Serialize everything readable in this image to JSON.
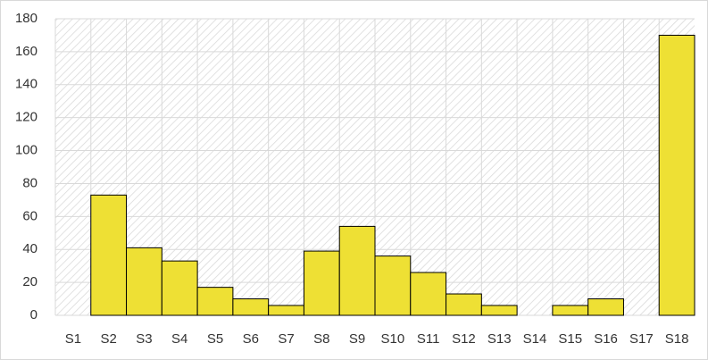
{
  "chart_data": {
    "type": "bar",
    "categories": [
      "S1",
      "S2",
      "S3",
      "S4",
      "S5",
      "S6",
      "S7",
      "S8",
      "S9",
      "S10",
      "S11",
      "S12",
      "S13",
      "S14",
      "S15",
      "S16",
      "S17",
      "S18"
    ],
    "values": [
      0,
      73,
      41,
      33,
      17,
      10,
      6,
      39,
      54,
      36,
      26,
      13,
      6,
      0,
      6,
      10,
      0,
      170
    ],
    "color": "#eee034",
    "ylim": [
      0,
      180
    ],
    "yticks": [
      0,
      20,
      40,
      60,
      80,
      100,
      120,
      140,
      160,
      180
    ],
    "grid": true
  }
}
